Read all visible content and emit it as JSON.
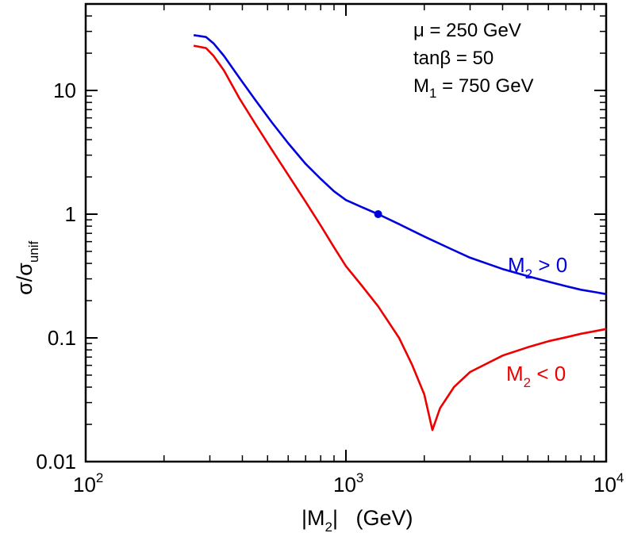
{
  "chart_data": {
    "type": "line",
    "title": "",
    "x_scale": "log",
    "y_scale": "log",
    "xlim": [
      100,
      10000
    ],
    "ylim": [
      0.01,
      50
    ],
    "x_ticks": [
      {
        "value": 100,
        "base": "10",
        "exp": "2"
      },
      {
        "value": 1000,
        "base": "10",
        "exp": "3"
      },
      {
        "value": 10000,
        "base": "10",
        "exp": "4"
      }
    ],
    "y_ticks": [
      {
        "value": 0.01,
        "label": "0.01"
      },
      {
        "value": 0.1,
        "label": "0.1"
      },
      {
        "value": 1,
        "label": "1"
      },
      {
        "value": 10,
        "label": "10"
      }
    ],
    "xlabel": {
      "pre": "|M",
      "sub": "2",
      "post": "|   (GeV)"
    },
    "ylabel": {
      "main": "σ/σ",
      "sub": "unif"
    },
    "annotations": [
      {
        "text": "μ = 250 GeV"
      },
      {
        "text": "tanβ = 50"
      },
      {
        "pre": "M",
        "sub": "1",
        "post": " = 750 GeV"
      }
    ],
    "series": [
      {
        "name": "M2 > 0",
        "label": {
          "pre": "M",
          "sub": "2",
          "post": " > 0"
        },
        "color": "#0000dd",
        "points": [
          [
            260,
            28
          ],
          [
            290,
            27
          ],
          [
            310,
            24
          ],
          [
            340,
            19
          ],
          [
            390,
            12.6
          ],
          [
            450,
            8.3
          ],
          [
            520,
            5.5
          ],
          [
            600,
            3.75
          ],
          [
            700,
            2.55
          ],
          [
            800,
            1.93
          ],
          [
            900,
            1.53
          ],
          [
            1000,
            1.3
          ],
          [
            1150,
            1.14
          ],
          [
            1330,
            1.0
          ],
          [
            1600,
            0.83
          ],
          [
            2000,
            0.66
          ],
          [
            2500,
            0.53
          ],
          [
            3000,
            0.445
          ],
          [
            4000,
            0.36
          ],
          [
            5000,
            0.315
          ],
          [
            6000,
            0.285
          ],
          [
            7000,
            0.262
          ],
          [
            8000,
            0.245
          ],
          [
            9000,
            0.235
          ],
          [
            10000,
            0.226
          ]
        ]
      },
      {
        "name": "M2 < 0",
        "label": {
          "pre": "M",
          "sub": "2",
          "post": " < 0"
        },
        "color": "#ee0000",
        "points": [
          [
            260,
            23
          ],
          [
            290,
            22
          ],
          [
            310,
            19
          ],
          [
            340,
            14.5
          ],
          [
            390,
            8.6
          ],
          [
            450,
            5.3
          ],
          [
            520,
            3.3
          ],
          [
            600,
            2.08
          ],
          [
            700,
            1.26
          ],
          [
            800,
            0.81
          ],
          [
            900,
            0.54
          ],
          [
            1000,
            0.38
          ],
          [
            1150,
            0.265
          ],
          [
            1330,
            0.18
          ],
          [
            1600,
            0.1
          ],
          [
            1800,
            0.06
          ],
          [
            2000,
            0.035
          ],
          [
            2150,
            0.018
          ],
          [
            2300,
            0.027
          ],
          [
            2600,
            0.04
          ],
          [
            3000,
            0.053
          ],
          [
            4000,
            0.072
          ],
          [
            5000,
            0.084
          ],
          [
            6000,
            0.094
          ],
          [
            7000,
            0.101
          ],
          [
            8000,
            0.108
          ],
          [
            9000,
            0.113
          ],
          [
            10000,
            0.118
          ]
        ]
      }
    ],
    "markers": [
      {
        "series": "M2 > 0",
        "x": 1330,
        "y": 1.0,
        "color": "#0000dd"
      }
    ],
    "grid": false,
    "legend": "inline labels, right side"
  }
}
